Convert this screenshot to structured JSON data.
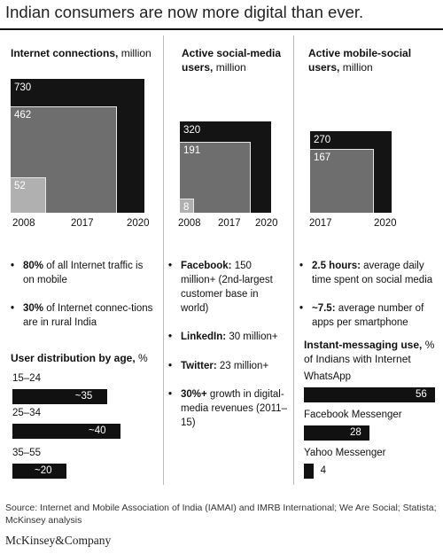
{
  "title": "Indian consumers are now more digital than ever.",
  "columns": [
    {
      "heading_bold": "Internet connections,",
      "heading_rest": " million"
    },
    {
      "heading_bold": "Active social-media users,",
      "heading_rest": " million"
    },
    {
      "heading_bold": "Active mobile-social users,",
      "heading_rest": " million"
    }
  ],
  "chart_data": [
    {
      "type": "bar",
      "title": "Internet connections, million",
      "categories": [
        "2008",
        "2017",
        "2020"
      ],
      "values": [
        52,
        462,
        730
      ],
      "value_labels": [
        "52",
        "462",
        "730"
      ],
      "colors": [
        "#b0b0b0",
        "#6e6e6e",
        "#141414"
      ]
    },
    {
      "type": "bar",
      "title": "Active social-media users, million",
      "categories": [
        "2008",
        "2017",
        "2020"
      ],
      "values": [
        8,
        191,
        320
      ],
      "value_labels": [
        "8",
        "191",
        "320"
      ],
      "colors": [
        "#b0b0b0",
        "#6e6e6e",
        "#141414"
      ]
    },
    {
      "type": "bar",
      "title": "Active mobile-social users, million",
      "categories": [
        "2017",
        "2020"
      ],
      "values": [
        167,
        270
      ],
      "value_labels": [
        "167",
        "270"
      ],
      "colors": [
        "#6e6e6e",
        "#141414"
      ]
    },
    {
      "type": "bar",
      "title": "User distribution by age, %",
      "categories": [
        "15–24",
        "25–34",
        "35–55"
      ],
      "values": [
        35,
        40,
        20
      ],
      "value_labels": [
        "~35",
        "~40",
        "~20"
      ]
    },
    {
      "type": "bar",
      "title": "Instant-messaging use, % of Indians with Internet",
      "categories": [
        "WhatsApp",
        "Facebook Messenger",
        "Yahoo Messenger"
      ],
      "values": [
        56,
        28,
        4
      ],
      "value_labels": [
        "56",
        "28",
        "4"
      ]
    }
  ],
  "col1_bullets": [
    {
      "bold": "80%",
      "rest": " of all Internet traffic is on mobile"
    },
    {
      "bold": "30%",
      "rest": " of Internet connec-tions are in rural India"
    }
  ],
  "age_heading_bold": "User distribution by age,",
  "age_heading_rest": " %",
  "col2_bullets": [
    {
      "bold": "Facebook:",
      "rest": " 150 million+ (2nd-largest customer base in world)"
    },
    {
      "bold": "LinkedIn:",
      "rest": " 30 million+"
    },
    {
      "bold": "Twitter:",
      "rest": " 23 million+"
    },
    {
      "bold": "30%+",
      "rest": " growth in digital-media revenues (2011–15)"
    }
  ],
  "col3_bullets": [
    {
      "bold": "2.5 hours:",
      "rest": " average daily time spent on social media"
    },
    {
      "bold": "~7.5:",
      "rest": " average number of apps per smartphone"
    }
  ],
  "im_heading_bold": "Instant-messaging use,",
  "im_heading_rest": " % of Indians with Internet",
  "source": "Source: Internet and Mobile Association of India (IAMAI) and IMRB International; We Are Social; Statista; McKinsey analysis",
  "brand": "McKinsey&Company"
}
